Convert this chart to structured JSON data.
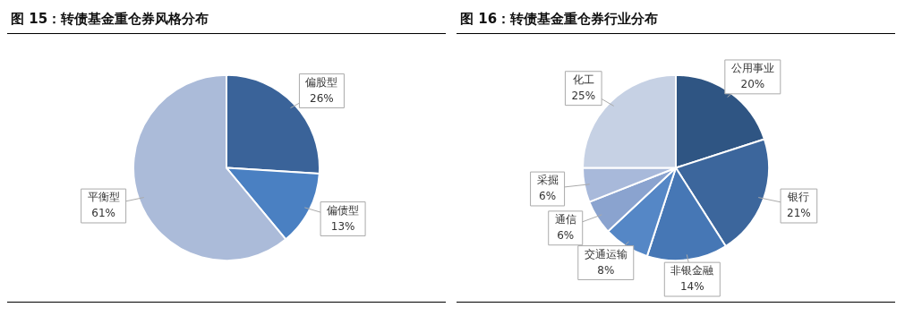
{
  "chart_data": [
    {
      "type": "pie",
      "title": "图 15：转债基金重仓券风格分布",
      "categories": [
        "偏股型",
        "偏债型",
        "平衡型"
      ],
      "values": [
        26,
        13,
        61
      ],
      "value_labels": [
        "26%",
        "13%",
        "61%"
      ],
      "colors": [
        "#3a6399",
        "#4a80c2",
        "#abbbd9"
      ],
      "legend": false
    },
    {
      "type": "pie",
      "title": "图 16：转债基金重仓券行业分布",
      "categories": [
        "公用事业",
        "银行",
        "非银金融",
        "交通运输",
        "通信",
        "采掘",
        "化工"
      ],
      "values": [
        20,
        21,
        14,
        8,
        6,
        6,
        25
      ],
      "value_labels": [
        "20%",
        "21%",
        "14%",
        "8%",
        "6%",
        "6%",
        "25%"
      ],
      "colors": [
        "#2f5583",
        "#3c669c",
        "#4677b5",
        "#5587c6",
        "#8aa3cf",
        "#a8b9da",
        "#c6d1e4"
      ],
      "legend": false
    }
  ]
}
